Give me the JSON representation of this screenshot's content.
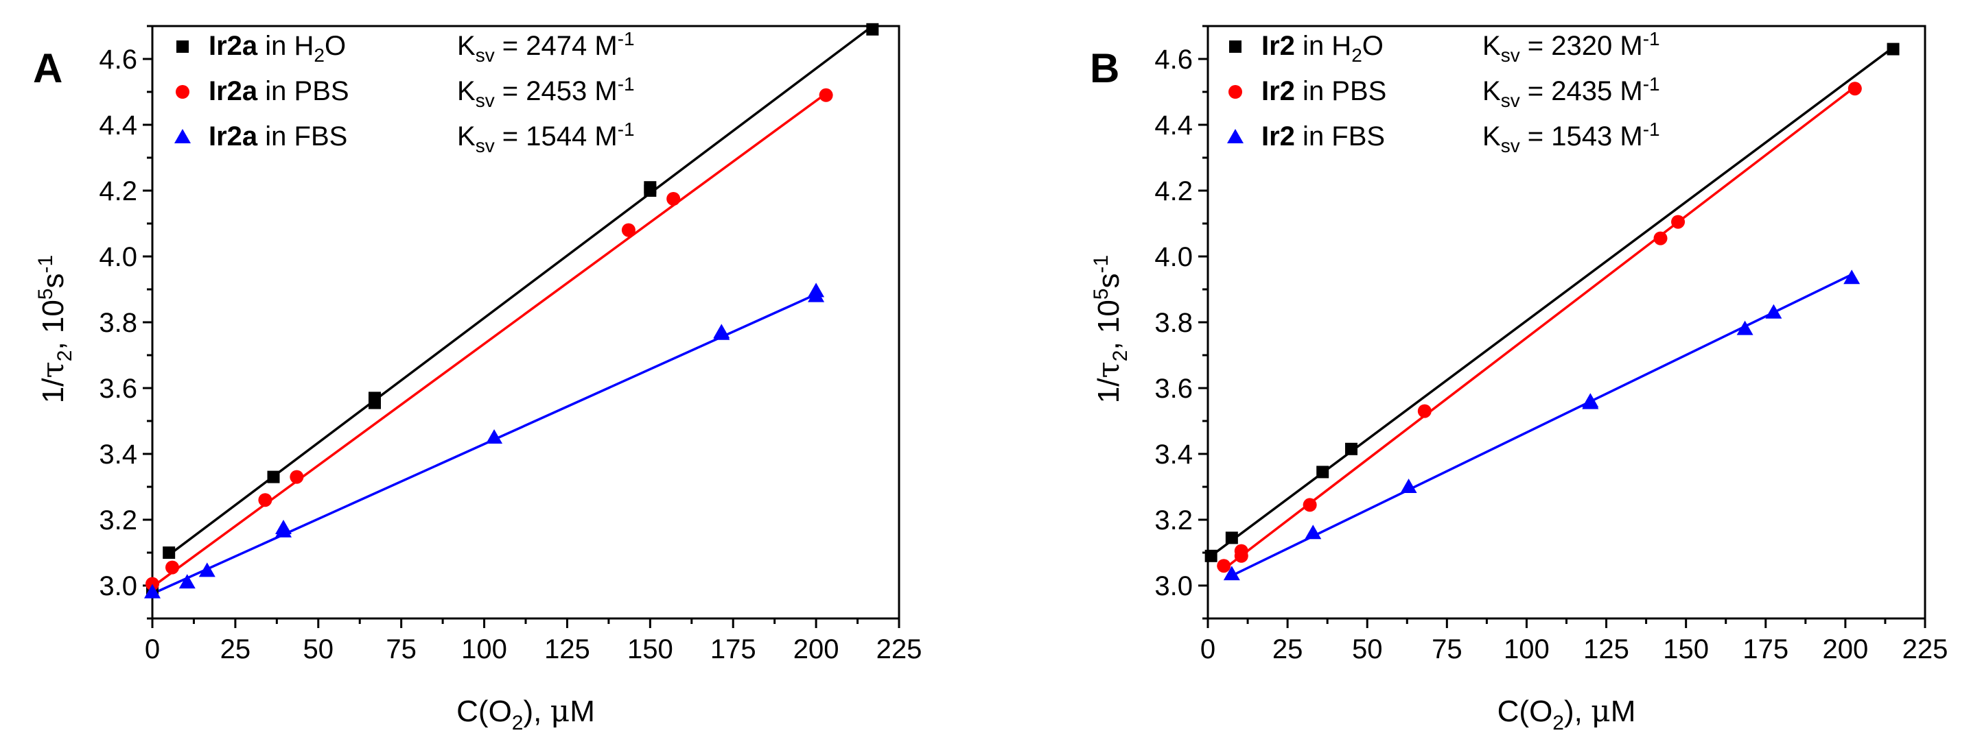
{
  "chart_data": [
    {
      "panel_label": "A",
      "type": "scatter",
      "xlabel_parts": [
        "C(O",
        "2",
        "), ",
        "μ",
        "M"
      ],
      "ylabel_parts": [
        "1/",
        "τ",
        "2",
        ", 10",
        "5",
        "s",
        "-1"
      ],
      "xlim": [
        0,
        225
      ],
      "ylim": [
        2.9,
        4.7
      ],
      "xticks": [
        "0",
        "25",
        "50",
        "75",
        "100",
        "125",
        "150",
        "175",
        "200",
        "225"
      ],
      "yticks": [
        "3.0",
        "3.2",
        "3.4",
        "3.6",
        "3.8",
        "4.0",
        "4.2",
        "4.4",
        "4.6"
      ],
      "series": [
        {
          "name": "Ir2a in H2O",
          "compound": "Ir2a",
          "medium": "in H",
          "medium_sub": "2",
          "medium_tail": "O",
          "ksv_label": "K",
          "ksv_sub": "sv",
          "ksv_value": " = 2474 M",
          "ksv_sup": "-1",
          "color": "#000000",
          "marker": "square",
          "x": [
            0,
            5,
            36.5,
            67,
            67,
            150,
            150,
            217
          ],
          "y": [
            2.99,
            3.1,
            3.33,
            3.555,
            3.57,
            4.2,
            4.21,
            4.69
          ],
          "fit": [
            [
              5,
              3.093
            ],
            [
              217,
              4.7
            ]
          ]
        },
        {
          "name": "Ir2a in PBS",
          "compound": "Ir2a",
          "medium": "in PBS",
          "medium_sub": "",
          "medium_tail": "",
          "ksv_label": "K",
          "ksv_sub": "sv",
          "ksv_value": " = 2453 M",
          "ksv_sup": "-1",
          "color": "#ff0000",
          "marker": "circle",
          "x": [
            0,
            6,
            34,
            43.5,
            143.5,
            157,
            203
          ],
          "y": [
            3.005,
            3.055,
            3.26,
            3.33,
            4.08,
            4.175,
            4.49
          ],
          "fit": [
            [
              0,
              2.996
            ],
            [
              203,
              4.495
            ]
          ]
        },
        {
          "name": "Ir2a in FBS",
          "compound": "Ir2a",
          "medium": "in FBS",
          "medium_sub": "",
          "medium_tail": "",
          "ksv_label": "K",
          "ksv_sub": "sv",
          "ksv_value": " = 1544 M",
          "ksv_sup": "-1",
          "color": "#0000ff",
          "marker": "triangle",
          "x": [
            0,
            10.5,
            16.5,
            39.5,
            39.5,
            103,
            171.5,
            171.5,
            200,
            200
          ],
          "y": [
            2.98,
            3.01,
            3.045,
            3.165,
            3.175,
            3.45,
            3.765,
            3.77,
            3.88,
            3.895
          ],
          "fit": [
            [
              0,
              2.975
            ],
            [
              200,
              3.885
            ]
          ]
        }
      ]
    },
    {
      "panel_label": "B",
      "type": "scatter",
      "xlabel_parts": [
        "C(O",
        "2",
        "), ",
        "μ",
        "M"
      ],
      "ylabel_parts": [
        "1/",
        "τ",
        "2",
        ", 10",
        "5",
        "s",
        "-1"
      ],
      "xlim": [
        0,
        225
      ],
      "ylim": [
        2.9,
        4.7
      ],
      "xticks": [
        "0",
        "25",
        "50",
        "75",
        "100",
        "125",
        "150",
        "175",
        "200",
        "225"
      ],
      "yticks": [
        "3.0",
        "3.2",
        "3.4",
        "3.6",
        "3.8",
        "4.0",
        "4.2",
        "4.4",
        "4.6"
      ],
      "series": [
        {
          "name": "Ir2 in H2O",
          "compound": "Ir2",
          "medium": "in H",
          "medium_sub": "2",
          "medium_tail": "O",
          "ksv_label": "K",
          "ksv_sub": "sv",
          "ksv_value": " = 2320 M",
          "ksv_sup": "-1",
          "color": "#000000",
          "marker": "square",
          "x": [
            1,
            7.5,
            36,
            45,
            215
          ],
          "y": [
            3.09,
            3.145,
            3.345,
            3.415,
            4.63
          ],
          "fit": [
            [
              1,
              3.09
            ],
            [
              215,
              4.635
            ]
          ]
        },
        {
          "name": "Ir2 in PBS",
          "compound": "Ir2",
          "medium": "in PBS",
          "medium_sub": "",
          "medium_tail": "",
          "ksv_label": "K",
          "ksv_sub": "sv",
          "ksv_value": " = 2435 M",
          "ksv_sup": "-1",
          "color": "#ff0000",
          "marker": "circle",
          "x": [
            5,
            10.5,
            10.5,
            32,
            68,
            142,
            147.5,
            203
          ],
          "y": [
            3.06,
            3.09,
            3.105,
            3.245,
            3.53,
            4.055,
            4.105,
            4.51
          ],
          "fit": [
            [
              5,
              3.05
            ],
            [
              203,
              4.515
            ]
          ]
        },
        {
          "name": "Ir2 in FBS",
          "compound": "Ir2",
          "medium": "in FBS",
          "medium_sub": "",
          "medium_tail": "",
          "ksv_label": "K",
          "ksv_sub": "sv",
          "ksv_value": " = 1543 M",
          "ksv_sup": "-1",
          "color": "#0000ff",
          "marker": "triangle",
          "x": [
            7.5,
            33,
            63,
            120,
            120,
            168.5,
            177.5,
            202
          ],
          "y": [
            3.035,
            3.16,
            3.3,
            3.555,
            3.56,
            3.78,
            3.83,
            3.935
          ],
          "fit": [
            [
              7.5,
              3.03
            ],
            [
              202,
              3.945
            ]
          ]
        }
      ]
    }
  ]
}
